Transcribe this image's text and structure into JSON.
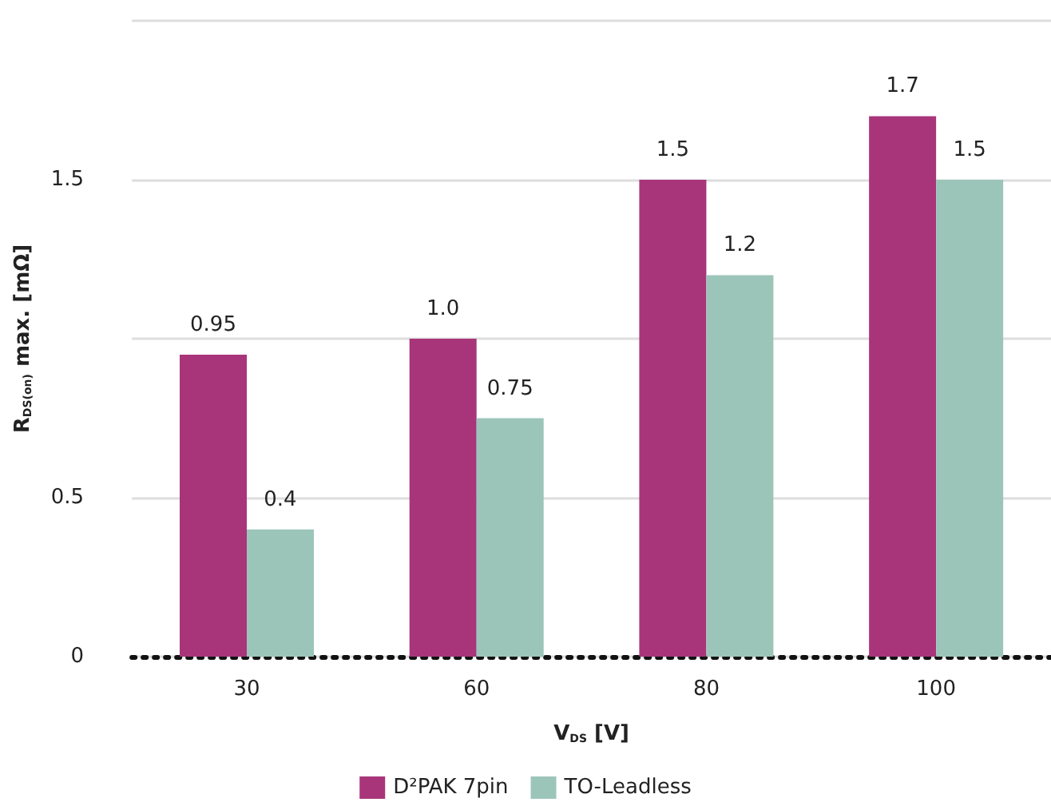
{
  "chart_data": {
    "type": "bar",
    "categories": [
      "30",
      "60",
      "80",
      "100"
    ],
    "series": [
      {
        "name": "D²PAK 7pin",
        "color": "#a8357a",
        "values": [
          0.95,
          1.0,
          1.5,
          1.7
        ],
        "value_labels": [
          "0.95",
          "1.0",
          "1.5",
          "1.7"
        ]
      },
      {
        "name": "TO-Leadless",
        "color": "#9cc5b9",
        "values": [
          0.4,
          0.75,
          1.2,
          1.5
        ],
        "value_labels": [
          "0.4",
          "0.75",
          "1.2",
          "1.5"
        ]
      }
    ],
    "xlabel": "V$_{DS}$ [V]",
    "ylabel": "R$_{DS(on)}$ max. [mΩ]",
    "ylim": [
      0,
      2
    ],
    "yticks": [
      0,
      0.5,
      {
        "value": 1,
        "label": null
      },
      1.5,
      {
        "value": 2,
        "label": null
      }
    ],
    "grid": "y",
    "legend": "bottom"
  }
}
